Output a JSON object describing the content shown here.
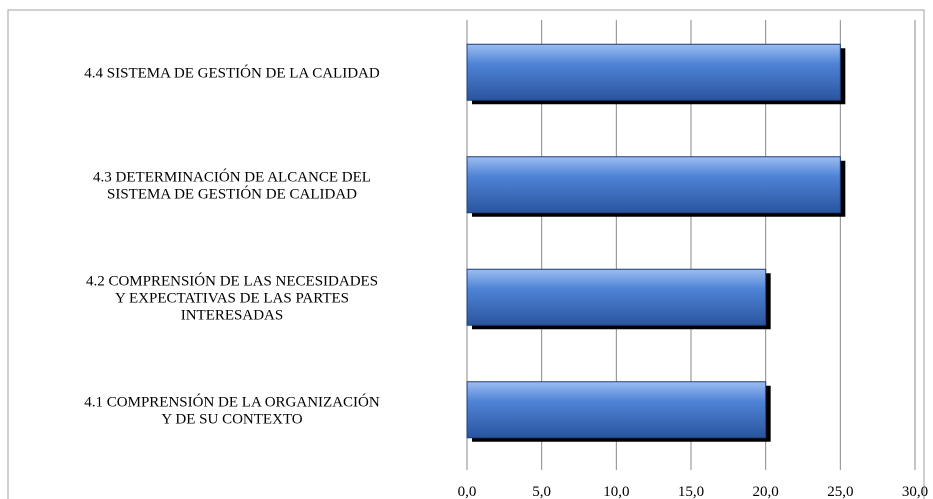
{
  "chart_data": {
    "type": "barh",
    "categories": [
      "4.4 SISTEMA DE GESTIÓN DE LA CALIDAD",
      "4.3 DETERMINACIÓN DE ALCANCE DEL\nSISTEMA DE GESTIÓN DE CALIDAD",
      "4.2 COMPRENSIÓN DE LAS NECESIDADES\nY EXPECTATIVAS DE LAS  PARTES\nINTERESADAS",
      "4.1 COMPRENSIÓN DE LA ORGANIZACIÓN\nY DE SU CONTEXTO"
    ],
    "values": [
      25,
      25,
      20,
      20
    ],
    "color": "#3b6fc4",
    "xlim": [
      0,
      30
    ],
    "xticks": [
      {
        "value": 0,
        "label": "0,0"
      },
      {
        "value": 5,
        "label": "5,0"
      },
      {
        "value": 10,
        "label": "10,0"
      },
      {
        "value": 15,
        "label": "15,0"
      },
      {
        "value": 20,
        "label": "20,0"
      },
      {
        "value": 25,
        "label": "25,0"
      },
      {
        "value": 30,
        "label": "30,0"
      }
    ],
    "grid": true
  }
}
